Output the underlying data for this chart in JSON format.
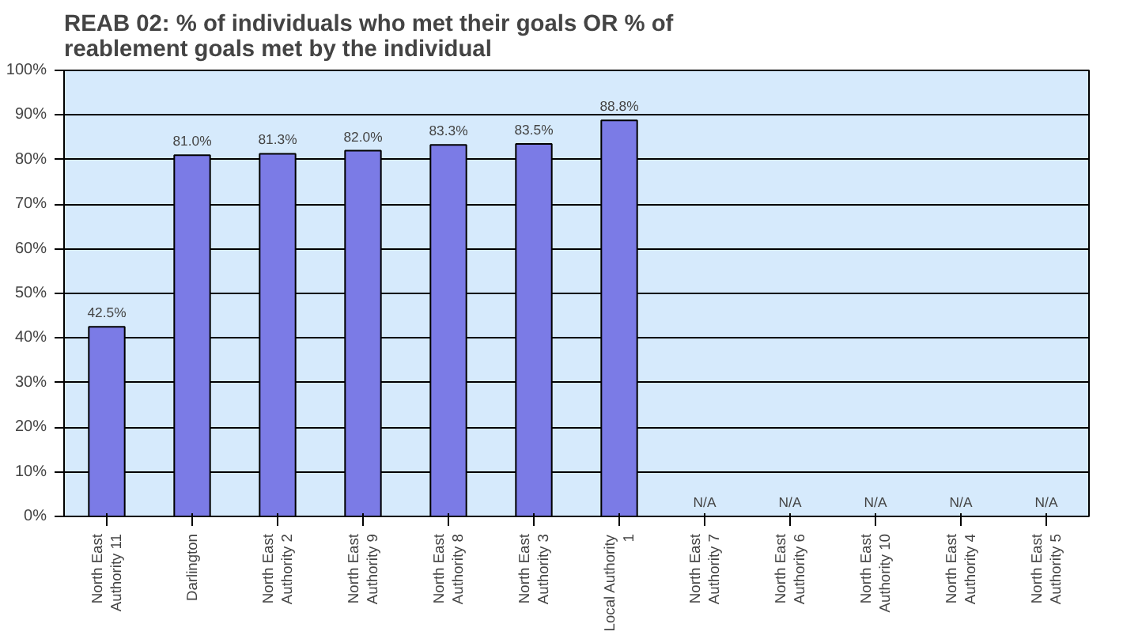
{
  "chart_data": {
    "type": "bar",
    "title": "REAB 02: % of individuals who met their goals  OR % of reablement goals met by the individual",
    "categories": [
      "North East Authority 11",
      "Darlington",
      "North East Authority 2",
      "North East Authority 9",
      "North East Authority 8",
      "North East Authority 3",
      "Local Authority 1",
      "North East Authority 7",
      "North East Authority 6",
      "North East Authority 10",
      "North East Authority 4",
      "North East Authority 5"
    ],
    "values": [
      42.5,
      81.0,
      81.3,
      82.0,
      83.3,
      83.5,
      88.8,
      null,
      null,
      null,
      null,
      null
    ],
    "value_labels": [
      "42.5%",
      "81.0%",
      "81.3%",
      "82.0%",
      "83.3%",
      "83.5%",
      "88.8%",
      "N/A",
      "N/A",
      "N/A",
      "N/A",
      "N/A"
    ],
    "color": "#7b7be6",
    "ylim": [
      0,
      100
    ],
    "yticks": [
      {
        "value": 0,
        "label": "0%"
      },
      {
        "value": 10,
        "label": "10%"
      },
      {
        "value": 20,
        "label": "20%"
      },
      {
        "value": 30,
        "label": "30%"
      },
      {
        "value": 40,
        "label": "40%"
      },
      {
        "value": 50,
        "label": "50%"
      },
      {
        "value": 60,
        "label": "60%"
      },
      {
        "value": 70,
        "label": "70%"
      },
      {
        "value": 80,
        "label": "80%"
      },
      {
        "value": 90,
        "label": "90%"
      },
      {
        "value": 100,
        "label": "100%"
      }
    ],
    "grid": "y"
  }
}
